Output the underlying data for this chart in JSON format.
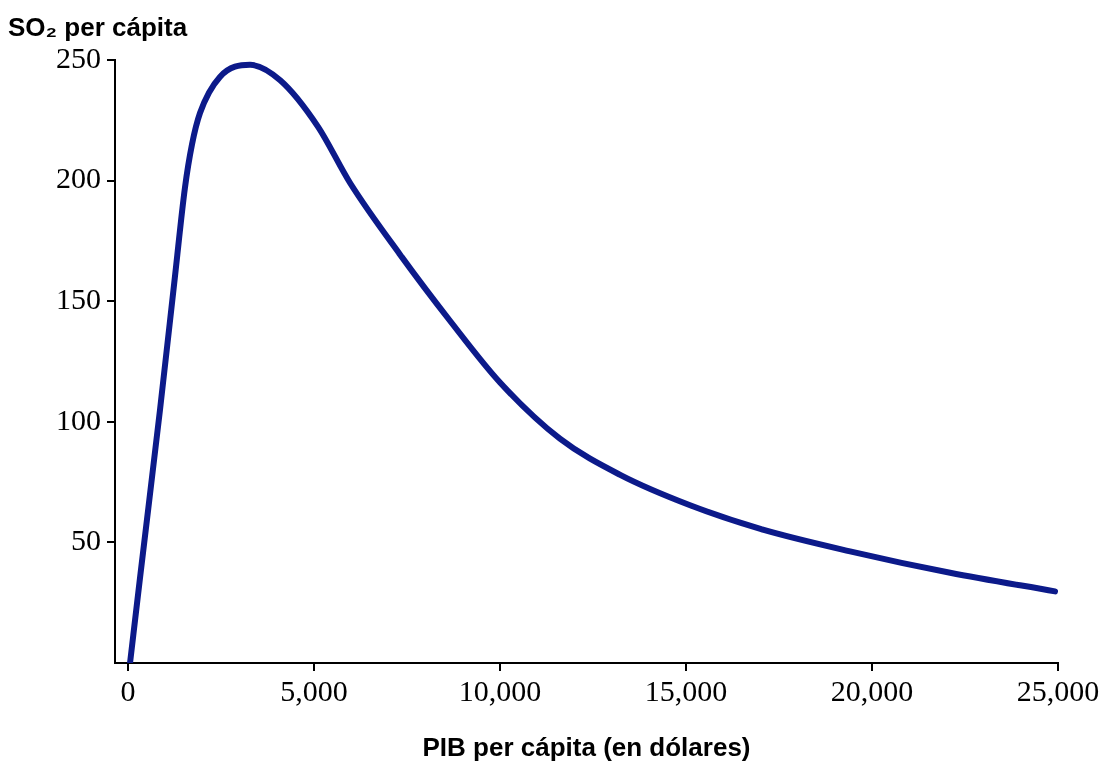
{
  "chart_data": {
    "type": "line",
    "ylabel": "SO₂ per cápita",
    "xlabel": "PIB per cápita (en dólares)",
    "series": [
      {
        "color": "#0c1a8a",
        "x": [
          54,
          320,
          860,
          1260,
          1530,
          1720,
          1935,
          2470,
          3280,
          4090,
          5100,
          5970,
          7310,
          8660,
          10000,
          11610,
          13230,
          15110,
          17000,
          19410,
          22100,
          24920
        ],
        "values": [
          0,
          35,
          105,
          160,
          197,
          215,
          228,
          243,
          248,
          241.6,
          222.5,
          199,
          169.4,
          141.8,
          116.3,
          93,
          78,
          65.4,
          55.6,
          46.3,
          37.4,
          29.7
        ]
      }
    ],
    "xlim": [
      -350,
      25000
    ],
    "xticks": [
      0,
      {
        "value": 5000,
        "label": "5,000"
      },
      {
        "value": 10000,
        "label": "10,000"
      },
      {
        "value": 15000,
        "label": "15,000"
      },
      {
        "value": 20000,
        "label": "20,000"
      },
      {
        "value": 25000,
        "label": "25,000"
      }
    ],
    "ylim": [
      0,
      250
    ],
    "yticks": [
      50,
      100,
      150,
      200,
      250
    ],
    "grid": false,
    "legend": false,
    "marker": "none",
    "line_style": "solid"
  }
}
